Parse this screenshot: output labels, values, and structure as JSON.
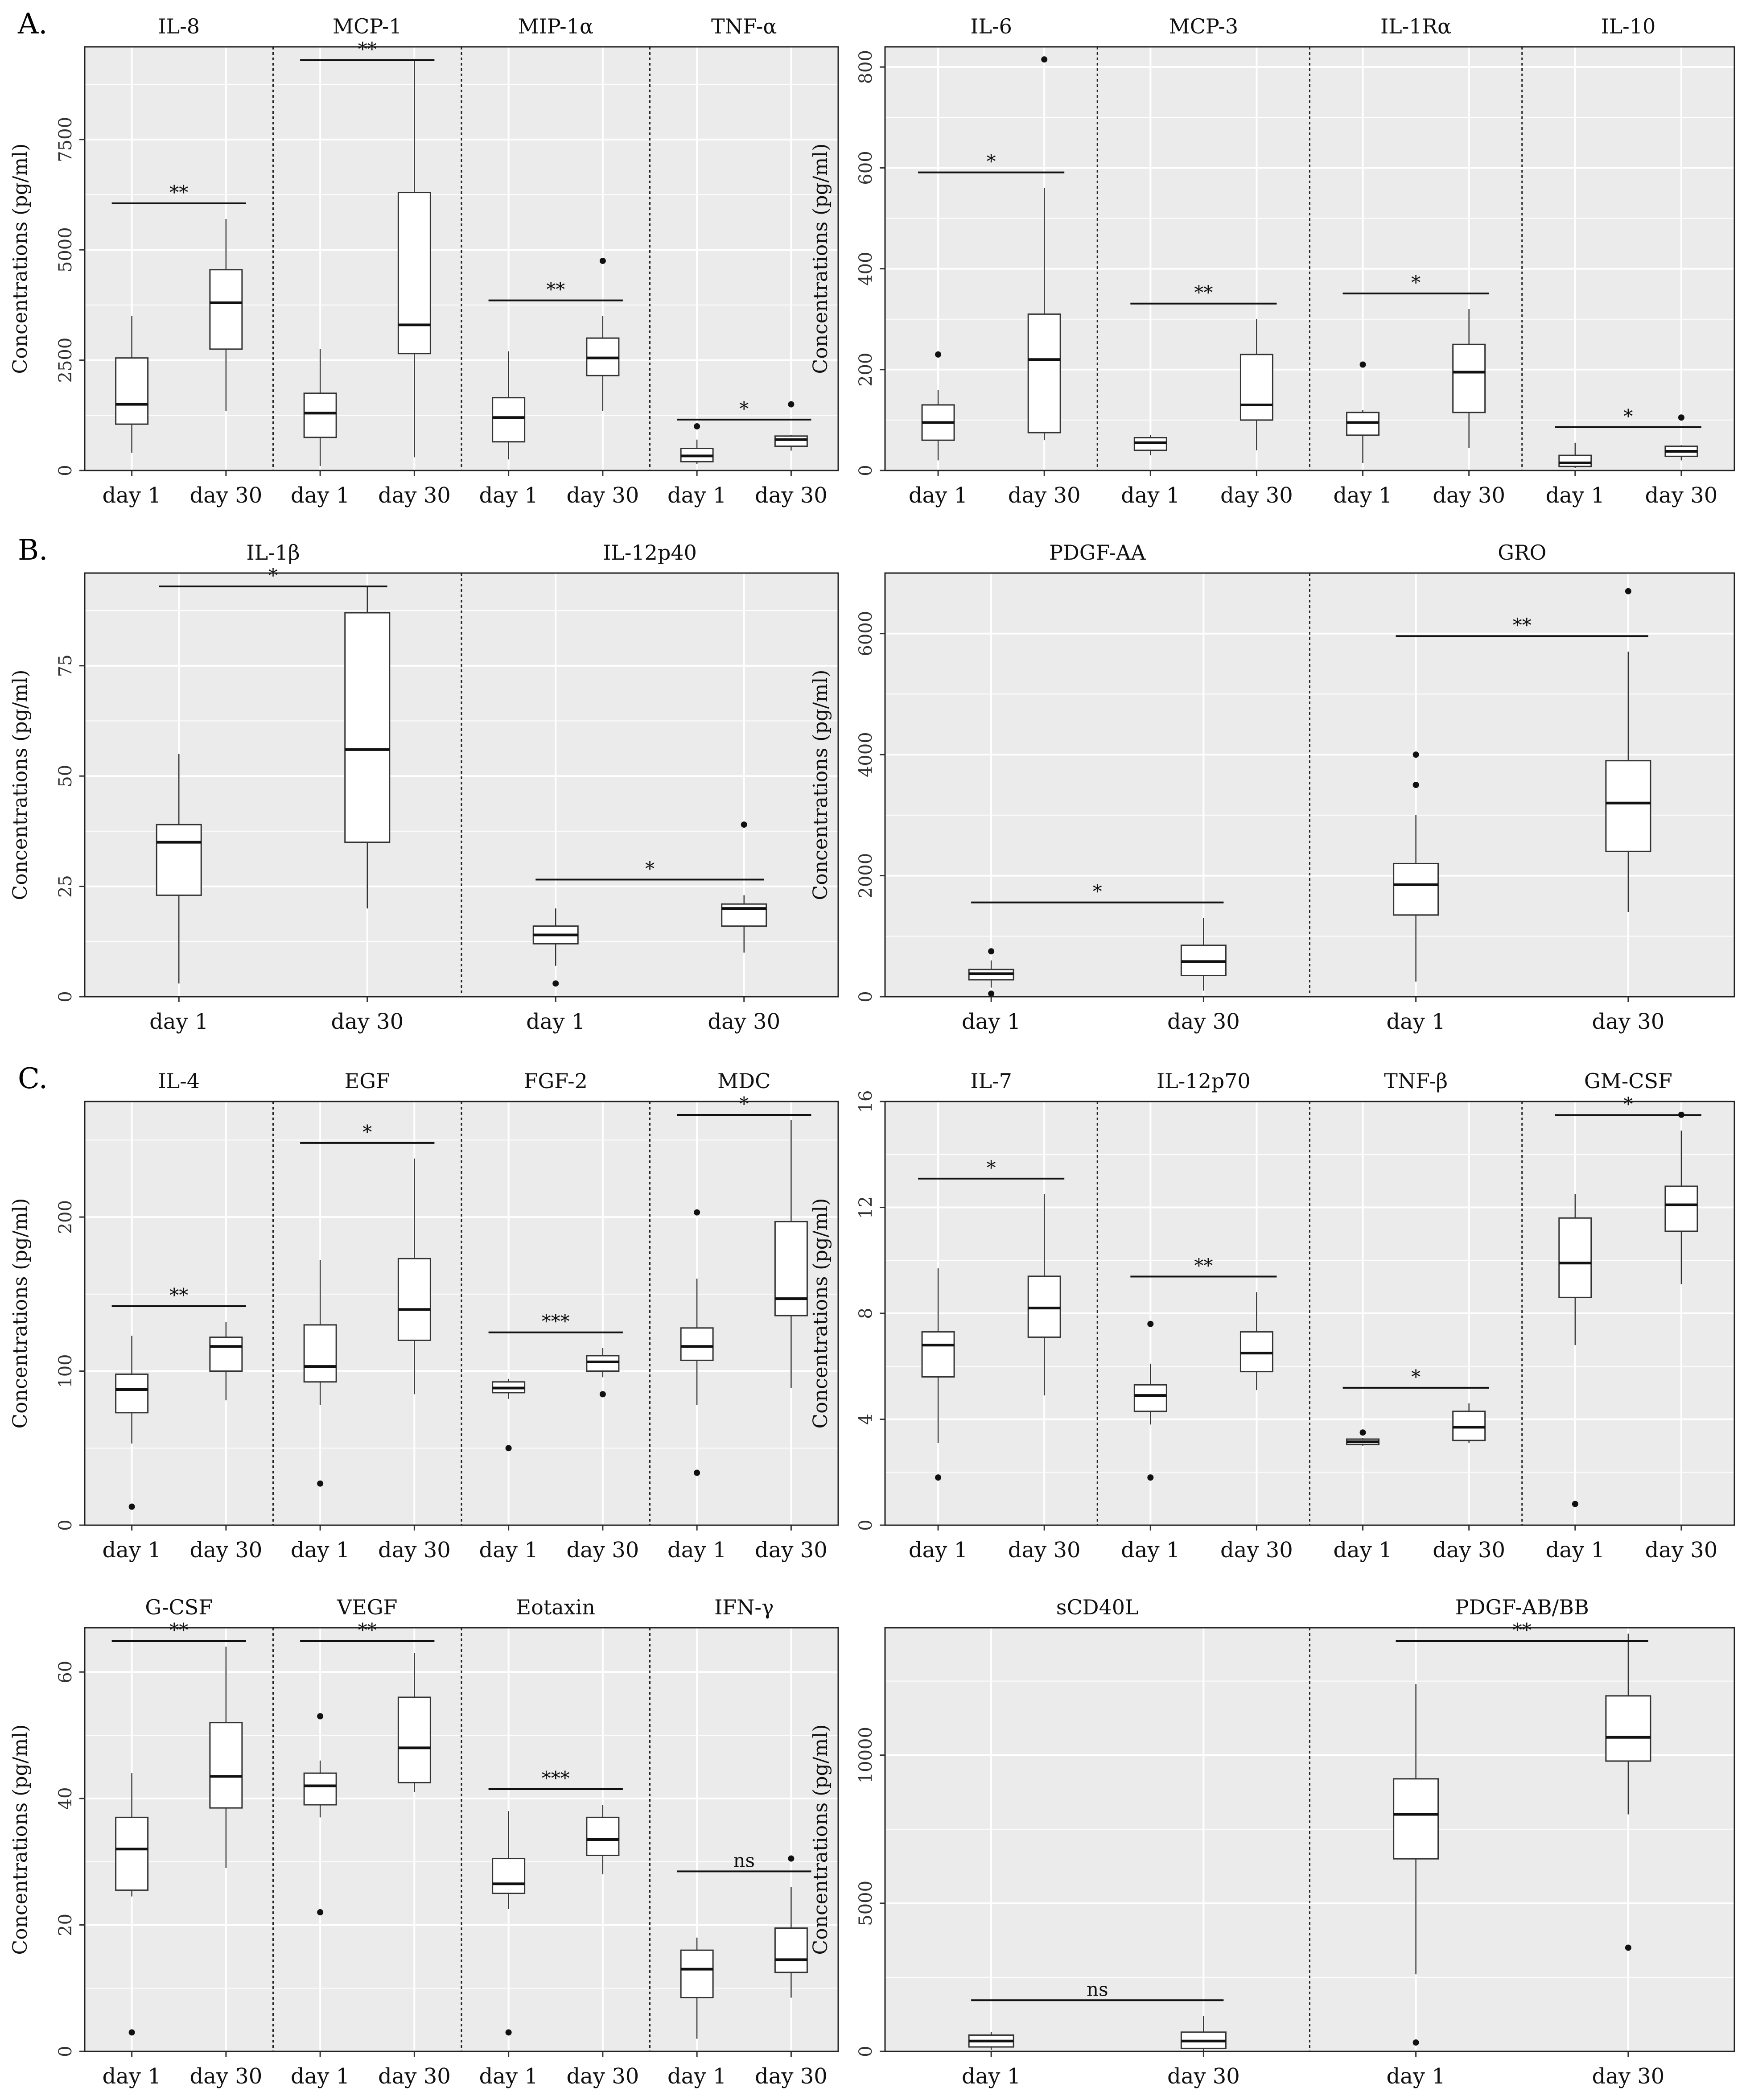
{
  "chart_data": [
    {
      "type": "box",
      "section_label": "A.",
      "ylabel": "Concentrations (pg/ml)",
      "ylim": [
        0,
        9600
      ],
      "yticks": [
        0,
        2500,
        5000,
        7500
      ],
      "panels": [
        {
          "name": "IL-8",
          "sig": "**",
          "groups": [
            {
              "label": "day 1",
              "min": 400,
              "q1": 1050,
              "median": 1500,
              "q3": 2550,
              "max": 3500,
              "outliers": []
            },
            {
              "label": "day 30",
              "min": 1350,
              "q1": 2750,
              "median": 3800,
              "q3": 4550,
              "max": 5700,
              "outliers": []
            }
          ]
        },
        {
          "name": "MCP-1",
          "sig": "**",
          "groups": [
            {
              "label": "day 1",
              "min": 100,
              "q1": 750,
              "median": 1300,
              "q3": 1750,
              "max": 2750,
              "outliers": []
            },
            {
              "label": "day 30",
              "min": 300,
              "q1": 2650,
              "median": 3300,
              "q3": 6300,
              "max": 9300,
              "outliers": []
            }
          ]
        },
        {
          "name": "MIP-1α",
          "sig": "**",
          "groups": [
            {
              "label": "day 1",
              "min": 250,
              "q1": 650,
              "median": 1200,
              "q3": 1650,
              "max": 2700,
              "outliers": []
            },
            {
              "label": "day 30",
              "min": 1350,
              "q1": 2150,
              "median": 2550,
              "q3": 3000,
              "max": 3500,
              "outliers": [
                4750
              ]
            }
          ]
        },
        {
          "name": "TNF-α",
          "sig": "*",
          "groups": [
            {
              "label": "day 1",
              "min": 150,
              "q1": 200,
              "median": 330,
              "q3": 500,
              "max": 700,
              "outliers": [
                1000
              ]
            },
            {
              "label": "day 30",
              "min": 450,
              "q1": 550,
              "median": 700,
              "q3": 780,
              "max": 800,
              "outliers": [
                1500
              ]
            }
          ]
        }
      ]
    },
    {
      "type": "box",
      "section_label": "",
      "ylabel": "Concentrations (pg/ml)",
      "ylim": [
        0,
        840
      ],
      "yticks": [
        0,
        200,
        400,
        600,
        800
      ],
      "panels": [
        {
          "name": "IL-6",
          "sig": "*",
          "groups": [
            {
              "label": "day 1",
              "min": 20,
              "q1": 60,
              "median": 95,
              "q3": 130,
              "max": 160,
              "outliers": [
                230
              ]
            },
            {
              "label": "day 30",
              "min": 60,
              "q1": 75,
              "median": 220,
              "q3": 310,
              "max": 560,
              "outliers": [
                815
              ]
            }
          ]
        },
        {
          "name": "MCP-3",
          "sig": "**",
          "groups": [
            {
              "label": "day 1",
              "min": 30,
              "q1": 40,
              "median": 55,
              "q3": 65,
              "max": 70,
              "outliers": []
            },
            {
              "label": "day 30",
              "min": 40,
              "q1": 100,
              "median": 130,
              "q3": 230,
              "max": 300,
              "outliers": []
            }
          ]
        },
        {
          "name": "IL-1Rα",
          "sig": "*",
          "groups": [
            {
              "label": "day 1",
              "min": 15,
              "q1": 70,
              "median": 95,
              "q3": 115,
              "max": 120,
              "outliers": [
                210
              ]
            },
            {
              "label": "day 30",
              "min": 45,
              "q1": 115,
              "median": 195,
              "q3": 250,
              "max": 320,
              "outliers": []
            }
          ]
        },
        {
          "name": "IL-10",
          "sig": "*",
          "groups": [
            {
              "label": "day 1",
              "min": 5,
              "q1": 8,
              "median": 15,
              "q3": 30,
              "max": 55,
              "outliers": []
            },
            {
              "label": "day 30",
              "min": 20,
              "q1": 28,
              "median": 38,
              "q3": 48,
              "max": 50,
              "outliers": [
                105
              ]
            }
          ]
        }
      ]
    },
    {
      "type": "box",
      "section_label": "B.",
      "ylabel": "Concentrations (pg/ml)",
      "ylim": [
        0,
        96
      ],
      "yticks": [
        0,
        25,
        50,
        75
      ],
      "panels": [
        {
          "name": "IL-1β",
          "sig": "*",
          "groups": [
            {
              "label": "day 1",
              "min": 3,
              "q1": 23,
              "median": 35,
              "q3": 39,
              "max": 55,
              "outliers": []
            },
            {
              "label": "day 30",
              "min": 20,
              "q1": 35,
              "median": 56,
              "q3": 87,
              "max": 93,
              "outliers": []
            }
          ]
        },
        {
          "name": "IL-12p40",
          "sig": "*",
          "groups": [
            {
              "label": "day 1",
              "min": 7,
              "q1": 12,
              "median": 14,
              "q3": 16,
              "max": 20,
              "outliers": [
                3
              ]
            },
            {
              "label": "day 30",
              "min": 10,
              "q1": 16,
              "median": 20,
              "q3": 21,
              "max": 23,
              "outliers": [
                39
              ]
            }
          ]
        }
      ]
    },
    {
      "type": "box",
      "section_label": "",
      "ylabel": "Concentrations (pg/ml)",
      "ylim": [
        0,
        7000
      ],
      "yticks": [
        0,
        2000,
        4000,
        6000
      ],
      "panels": [
        {
          "name": "PDGF-AA",
          "sig": "*",
          "groups": [
            {
              "label": "day 1",
              "min": 150,
              "q1": 280,
              "median": 380,
              "q3": 450,
              "max": 600,
              "outliers": [
                750,
                50
              ]
            },
            {
              "label": "day 30",
              "min": 100,
              "q1": 350,
              "median": 580,
              "q3": 850,
              "max": 1300,
              "outliers": []
            }
          ]
        },
        {
          "name": "GRO",
          "sig": "**",
          "groups": [
            {
              "label": "day 1",
              "min": 250,
              "q1": 1350,
              "median": 1850,
              "q3": 2200,
              "max": 3000,
              "outliers": [
                3500,
                4000
              ]
            },
            {
              "label": "day 30",
              "min": 1400,
              "q1": 2400,
              "median": 3200,
              "q3": 3900,
              "max": 5700,
              "outliers": [
                6700
              ]
            }
          ]
        }
      ]
    },
    {
      "type": "box",
      "section_label": "C.",
      "ylabel": "Concentrations (pg/ml)",
      "ylim": [
        0,
        275
      ],
      "yticks": [
        0,
        100,
        200
      ],
      "panels": [
        {
          "name": "IL-4",
          "sig": "**",
          "groups": [
            {
              "label": "day 1",
              "min": 53,
              "q1": 73,
              "median": 88,
              "q3": 98,
              "max": 123,
              "outliers": [
                12
              ]
            },
            {
              "label": "day 30",
              "min": 81,
              "q1": 100,
              "median": 116,
              "q3": 122,
              "max": 132,
              "outliers": []
            }
          ]
        },
        {
          "name": "EGF",
          "sig": "*",
          "groups": [
            {
              "label": "day 1",
              "min": 78,
              "q1": 93,
              "median": 103,
              "q3": 130,
              "max": 172,
              "outliers": [
                27
              ]
            },
            {
              "label": "day 30",
              "min": 85,
              "q1": 120,
              "median": 140,
              "q3": 173,
              "max": 238,
              "outliers": []
            }
          ]
        },
        {
          "name": "FGF-2",
          "sig": "***",
          "groups": [
            {
              "label": "day 1",
              "min": 82,
              "q1": 86,
              "median": 89,
              "q3": 93,
              "max": 95,
              "outliers": [
                50
              ]
            },
            {
              "label": "day 30",
              "min": 96,
              "q1": 100,
              "median": 106,
              "q3": 110,
              "max": 115,
              "outliers": [
                85
              ]
            }
          ]
        },
        {
          "name": "MDC",
          "sig": "*",
          "groups": [
            {
              "label": "day 1",
              "min": 78,
              "q1": 107,
              "median": 116,
              "q3": 128,
              "max": 160,
              "outliers": [
                203,
                34
              ]
            },
            {
              "label": "day 30",
              "min": 89,
              "q1": 136,
              "median": 147,
              "q3": 197,
              "max": 263,
              "outliers": []
            }
          ]
        }
      ]
    },
    {
      "type": "box",
      "section_label": "",
      "ylabel": "Concentrations (pg/ml)",
      "ylim": [
        0,
        16
      ],
      "yticks": [
        0,
        4,
        8,
        12,
        16
      ],
      "panels": [
        {
          "name": "IL-7",
          "sig": "*",
          "groups": [
            {
              "label": "day 1",
              "min": 3.1,
              "q1": 5.6,
              "median": 6.8,
              "q3": 7.3,
              "max": 9.7,
              "outliers": [
                1.8
              ]
            },
            {
              "label": "day 30",
              "min": 4.9,
              "q1": 7.1,
              "median": 8.2,
              "q3": 9.4,
              "max": 12.5,
              "outliers": []
            }
          ]
        },
        {
          "name": "IL-12p70",
          "sig": "**",
          "groups": [
            {
              "label": "day 1",
              "min": 3.8,
              "q1": 4.3,
              "median": 4.9,
              "q3": 5.3,
              "max": 6.1,
              "outliers": [
                7.6,
                1.8
              ]
            },
            {
              "label": "day 30",
              "min": 5.1,
              "q1": 5.8,
              "median": 6.5,
              "q3": 7.3,
              "max": 8.8,
              "outliers": []
            }
          ]
        },
        {
          "name": "TNF-β",
          "sig": "*",
          "groups": [
            {
              "label": "day 1",
              "min": 3.0,
              "q1": 3.05,
              "median": 3.15,
              "q3": 3.25,
              "max": 3.3,
              "outliers": [
                3.5
              ]
            },
            {
              "label": "day 30",
              "min": 3.1,
              "q1": 3.2,
              "median": 3.7,
              "q3": 4.3,
              "max": 4.6,
              "outliers": []
            }
          ]
        },
        {
          "name": "GM-CSF",
          "sig": "*",
          "groups": [
            {
              "label": "day 1",
              "min": 6.8,
              "q1": 8.6,
              "median": 9.9,
              "q3": 11.6,
              "max": 12.5,
              "outliers": [
                0.8
              ]
            },
            {
              "label": "day 30",
              "min": 9.1,
              "q1": 11.1,
              "median": 12.1,
              "q3": 12.8,
              "max": 14.9,
              "outliers": [
                15.5
              ]
            }
          ]
        }
      ]
    },
    {
      "type": "box",
      "section_label": "",
      "ylabel": "Concentrations (pg/ml)",
      "ylim": [
        0,
        67
      ],
      "yticks": [
        0,
        20,
        40,
        60
      ],
      "panels": [
        {
          "name": "G-CSF",
          "sig": "**",
          "groups": [
            {
              "label": "day 1",
              "min": 24.5,
              "q1": 25.5,
              "median": 32,
              "q3": 37,
              "max": 44,
              "outliers": [
                3
              ]
            },
            {
              "label": "day 30",
              "min": 29,
              "q1": 38.5,
              "median": 43.5,
              "q3": 52,
              "max": 64,
              "outliers": []
            }
          ]
        },
        {
          "name": "VEGF",
          "sig": "**",
          "groups": [
            {
              "label": "day 1",
              "min": 37,
              "q1": 39,
              "median": 42,
              "q3": 44,
              "max": 46,
              "outliers": [
                53,
                22
              ]
            },
            {
              "label": "day 30",
              "min": 41,
              "q1": 42.5,
              "median": 48,
              "q3": 56,
              "max": 63,
              "outliers": []
            }
          ]
        },
        {
          "name": "Eotaxin",
          "sig": "***",
          "groups": [
            {
              "label": "day 1",
              "min": 22.5,
              "q1": 25,
              "median": 26.5,
              "q3": 30.5,
              "max": 38,
              "outliers": [
                3
              ]
            },
            {
              "label": "day 30",
              "min": 28,
              "q1": 31,
              "median": 33.5,
              "q3": 37,
              "max": 39,
              "outliers": []
            }
          ]
        },
        {
          "name": "IFN-γ",
          "sig": "ns",
          "groups": [
            {
              "label": "day 1",
              "min": 2,
              "q1": 8.5,
              "median": 13,
              "q3": 16,
              "max": 18,
              "outliers": []
            },
            {
              "label": "day 30",
              "min": 8.5,
              "q1": 12.5,
              "median": 14.5,
              "q3": 19.5,
              "max": 26,
              "outliers": [
                30.5
              ]
            }
          ]
        }
      ]
    },
    {
      "type": "box",
      "section_label": "",
      "ylabel": "Concentrations (pg/ml)",
      "ylim": [
        0,
        14300
      ],
      "yticks": [
        0,
        5000,
        10000
      ],
      "panels": [
        {
          "name": "sCD40L",
          "sig": "ns",
          "groups": [
            {
              "label": "day 1",
              "min": 50,
              "q1": 150,
              "median": 350,
              "q3": 550,
              "max": 650,
              "outliers": []
            },
            {
              "label": "day 30",
              "min": 0,
              "q1": 100,
              "median": 350,
              "q3": 650,
              "max": 1200,
              "outliers": []
            }
          ]
        },
        {
          "name": "PDGF-AB/BB",
          "sig": "**",
          "groups": [
            {
              "label": "day 1",
              "min": 2600,
              "q1": 6500,
              "median": 8000,
              "q3": 9200,
              "max": 12400,
              "outliers": [
                300
              ]
            },
            {
              "label": "day 30",
              "min": 8000,
              "q1": 9800,
              "median": 10600,
              "q3": 12000,
              "max": 14100,
              "outliers": [
                3500
              ]
            }
          ]
        }
      ]
    }
  ]
}
